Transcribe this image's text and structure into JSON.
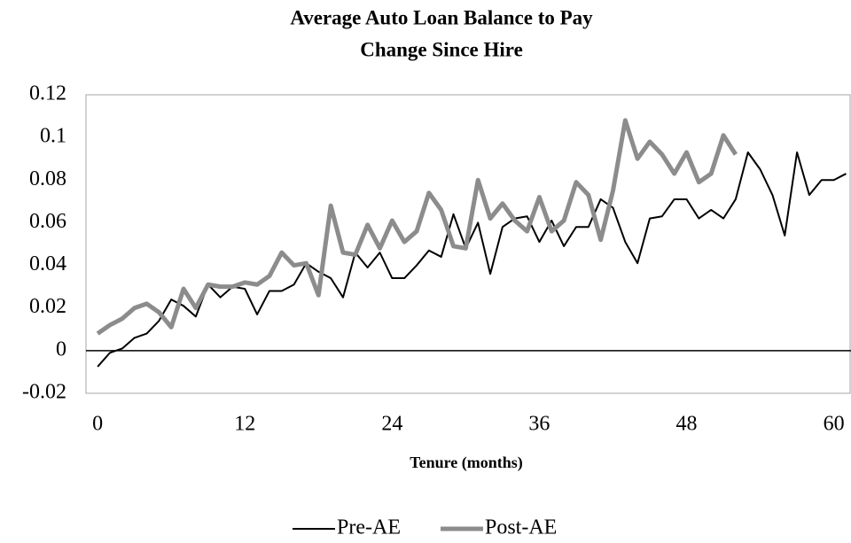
{
  "chart_data": {
    "type": "line",
    "title": [
      "Average Auto Loan Balance to Pay",
      "Change Since Hire"
    ],
    "x_label": "Tenure (months)",
    "x": [
      0,
      1,
      2,
      3,
      4,
      5,
      6,
      7,
      8,
      9,
      10,
      11,
      12,
      13,
      14,
      15,
      16,
      17,
      18,
      19,
      20,
      21,
      22,
      23,
      24,
      25,
      26,
      27,
      28,
      29,
      30,
      31,
      32,
      33,
      34,
      35,
      36,
      37,
      38,
      39,
      40,
      41,
      42,
      43,
      44,
      45,
      46,
      47,
      48,
      49,
      50,
      51,
      52,
      53,
      54,
      55,
      56,
      57,
      58,
      59,
      60,
      61
    ],
    "series": [
      {
        "name": "Pre-AE",
        "color": "#000000",
        "width": 2,
        "values": [
          -0.0075,
          -0.001,
          0.001,
          0.006,
          0.008,
          0.014,
          0.024,
          0.021,
          0.016,
          0.031,
          0.025,
          0.03,
          0.029,
          0.017,
          0.028,
          0.028,
          0.031,
          0.041,
          0.037,
          0.034,
          0.025,
          0.046,
          0.039,
          0.046,
          0.034,
          0.034,
          0.04,
          0.047,
          0.044,
          0.064,
          0.048,
          0.06,
          0.036,
          0.058,
          0.062,
          0.063,
          0.051,
          0.061,
          0.049,
          0.058,
          0.058,
          0.071,
          0.067,
          0.051,
          0.041,
          0.062,
          0.063,
          0.071,
          0.071,
          0.062,
          0.066,
          0.062,
          0.071,
          0.093,
          0.085,
          0.073,
          0.054,
          0.093,
          0.073,
          0.08,
          0.08,
          0.083
        ]
      },
      {
        "name": "Post-AE",
        "color": "#8c8c8c",
        "width": 5,
        "values": [
          0.008,
          0.012,
          0.015,
          0.02,
          0.022,
          0.018,
          0.011,
          0.029,
          0.02,
          0.031,
          0.03,
          0.03,
          0.032,
          0.031,
          0.035,
          0.046,
          0.04,
          0.041,
          0.026,
          0.068,
          0.046,
          0.045,
          0.059,
          0.048,
          0.061,
          0.051,
          0.056,
          0.074,
          0.066,
          0.049,
          0.048,
          0.08,
          0.062,
          0.069,
          0.061,
          0.056,
          0.072,
          0.056,
          0.061,
          0.079,
          0.073,
          0.052,
          0.075,
          0.108,
          0.09,
          0.098,
          0.092,
          0.083,
          0.093,
          0.079,
          0.083,
          0.101,
          0.092,
          null,
          null,
          null,
          null,
          null,
          null,
          null,
          null,
          null
        ]
      }
    ],
    "xlim": [
      -0.95,
      61.4
    ],
    "xticks": [
      0,
      12,
      24,
      36,
      48,
      60
    ],
    "ylim": [
      -0.02,
      0.12
    ],
    "yticks": [
      -0.02,
      0,
      0.02,
      0.04,
      0.06,
      0.08,
      0.1,
      0.12
    ],
    "grid": false,
    "legend": "bottom"
  }
}
